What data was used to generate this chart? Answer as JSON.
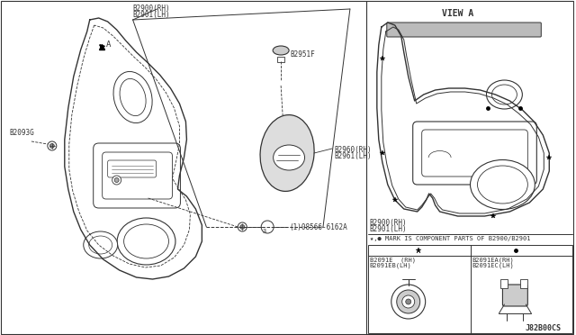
{
  "bg_color": "#ffffff",
  "line_color": "#333333",
  "text_color": "#333333",
  "labels": {
    "B2900_RH": "B2900(RH)",
    "B2901_LH": "B2901(LH)",
    "B2093G": "B2093G",
    "B2951F": "B2951F",
    "B2960_RH": "B2960(RH)",
    "B2961_LH": "B2961(LH)",
    "B8566": "(1)08566-6162A",
    "VIEW_A": "VIEW A",
    "B2900_RH2": "B2900(RH)",
    "B2901_LH2": "B2901(LH)",
    "mark_note": "★,● MARK IS COMPONENT PARTS OF B2900/B2901",
    "B2091E_RH": "B2091E  (RH)",
    "B2091EB_LH": "B2091EB(LH)",
    "B2091EA_RH": "B2091EA(RH)",
    "B2091EC_LH": "B2091EC(LH)",
    "diag_id": "J82B00CS",
    "arrow_A": "A"
  }
}
